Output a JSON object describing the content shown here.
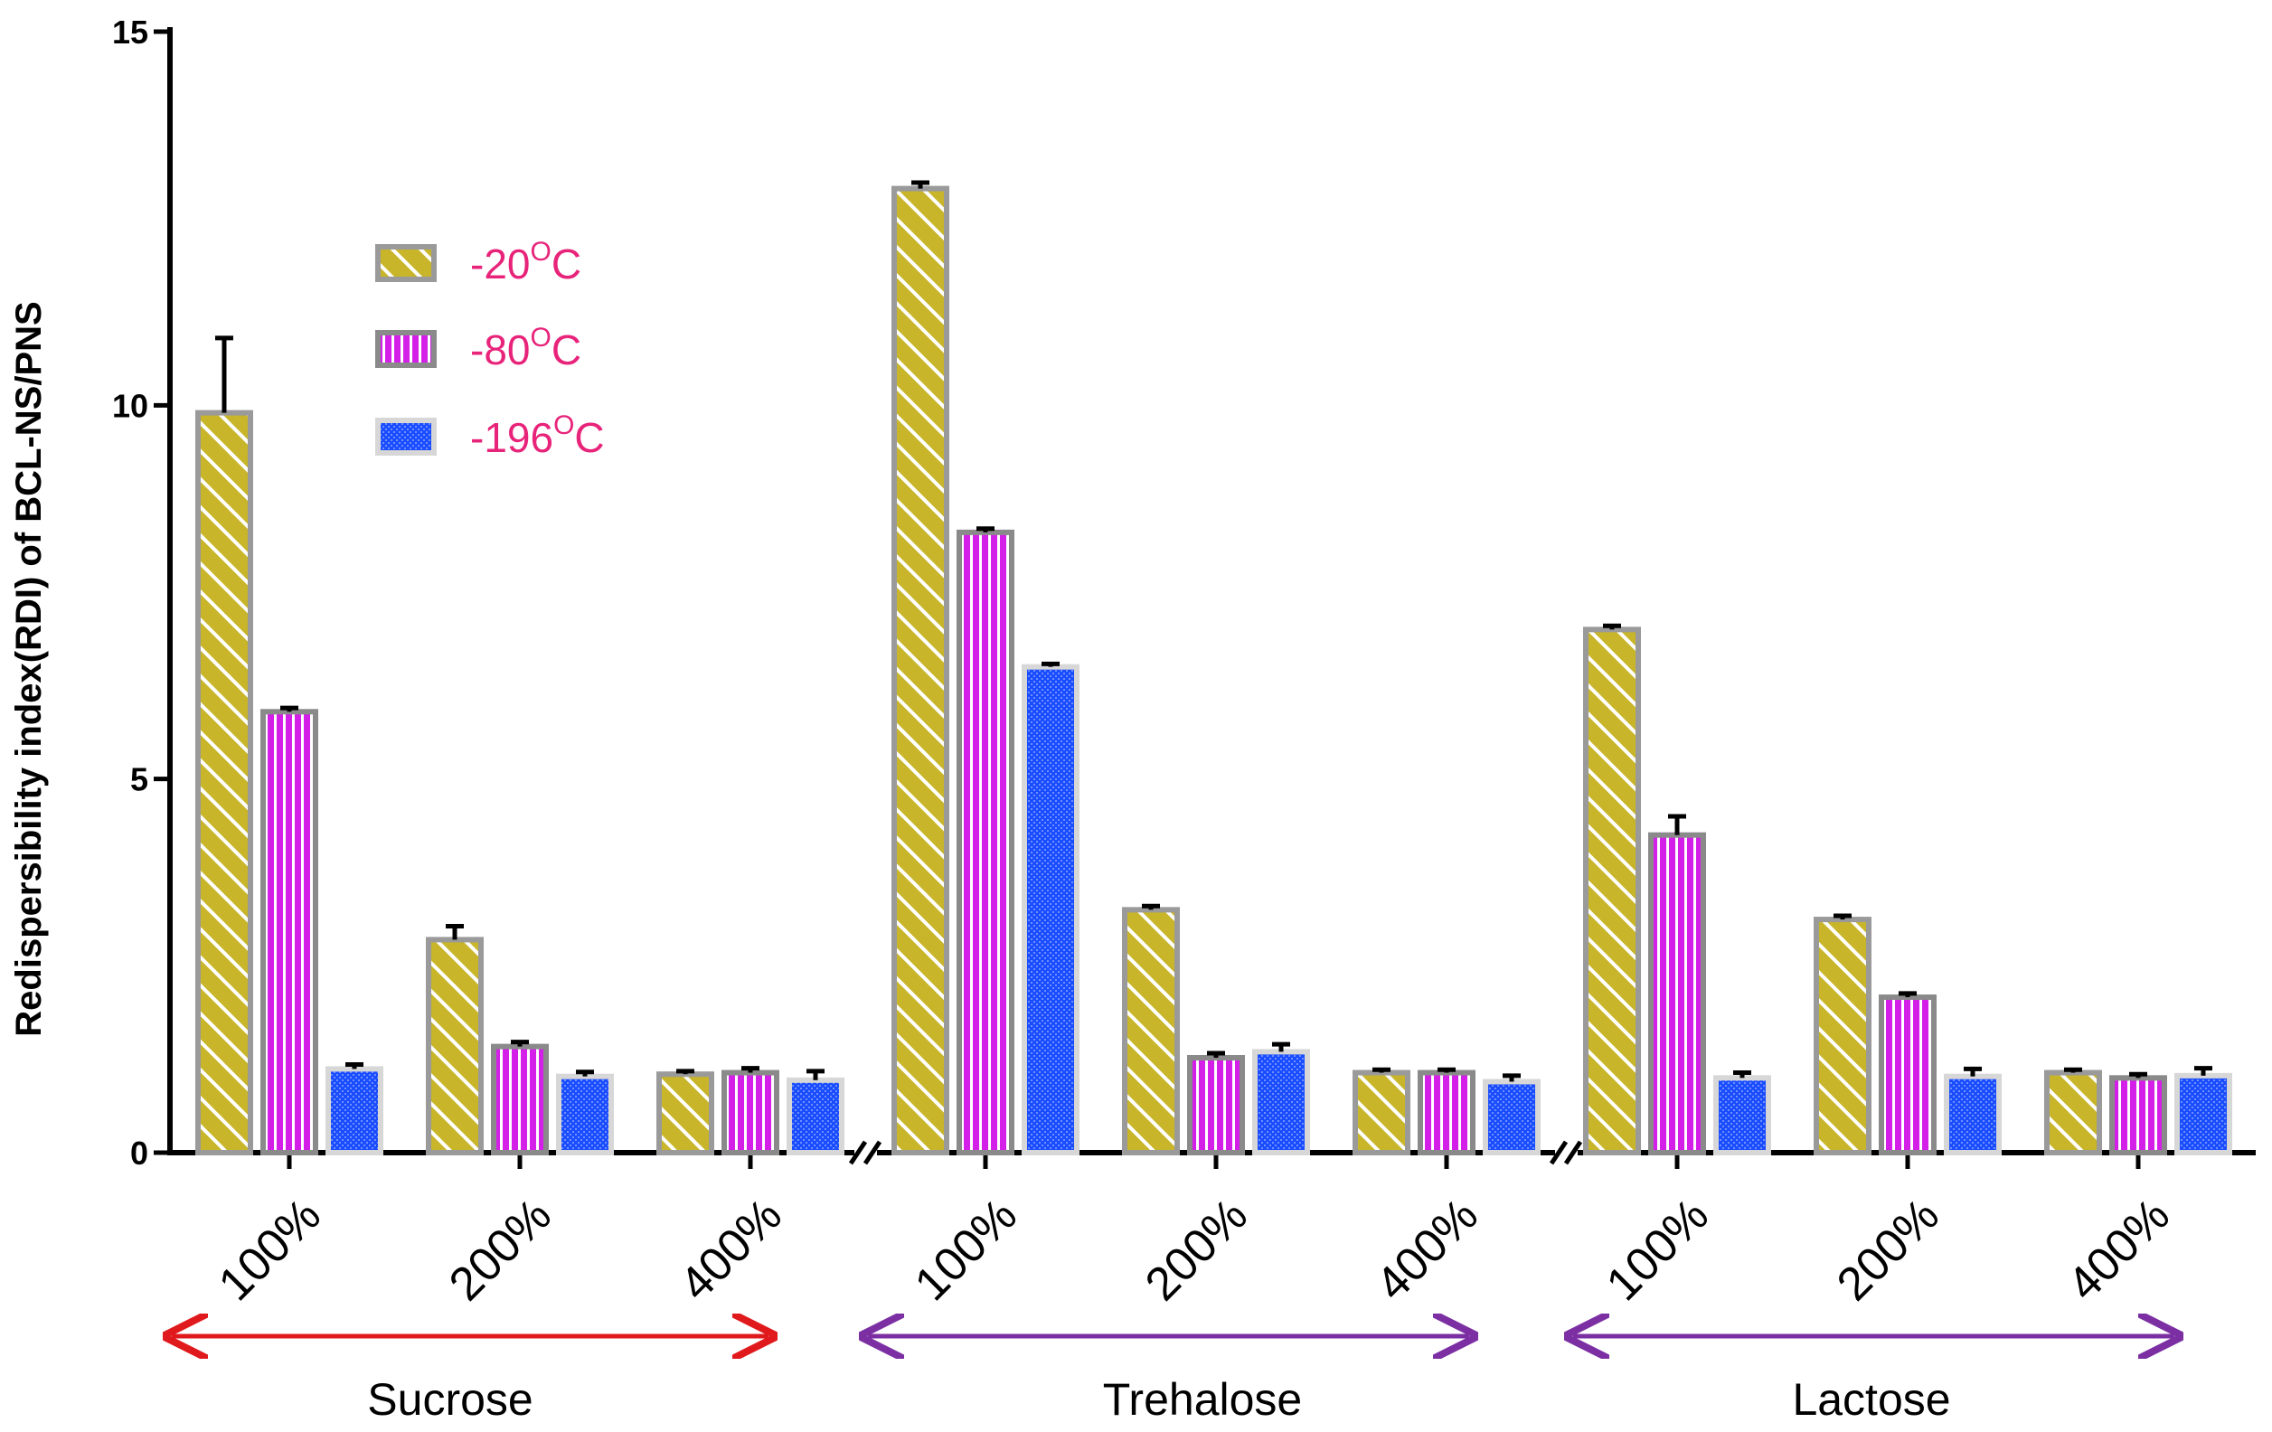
{
  "chart_data": {
    "type": "bar",
    "title": "",
    "ylabel": "Redispersibility index(RDI) of BCL-NS/PNS",
    "xlabel": "",
    "ylim": [
      0,
      15
    ],
    "yticks": [
      "0",
      "5",
      "10",
      "15"
    ],
    "groups": [
      {
        "name": "Sucrose",
        "arrow_color": "#e0191c",
        "categories": [
          "100%",
          "200%",
          "400%"
        ],
        "series": [
          {
            "name": "-20",
            "values": [
              9.9,
              2.85,
              1.05
            ],
            "errors": [
              1.0,
              0.18,
              0.04
            ]
          },
          {
            "name": "-80",
            "values": [
              5.9,
              1.42,
              1.07
            ],
            "errors": [
              0.05,
              0.06,
              0.06
            ]
          },
          {
            "name": "-196",
            "values": [
              1.12,
              1.02,
              0.97
            ],
            "errors": [
              0.06,
              0.06,
              0.12
            ]
          }
        ]
      },
      {
        "name": "Trehalose",
        "arrow_color": "#7b2fa3",
        "categories": [
          "100%",
          "200%",
          "400%"
        ],
        "series": [
          {
            "name": "-20",
            "values": [
              12.9,
              3.25,
              1.07
            ],
            "errors": [
              0.08,
              0.05,
              0.04
            ]
          },
          {
            "name": "-80",
            "values": [
              8.3,
              1.27,
              1.07
            ],
            "errors": [
              0.05,
              0.06,
              0.04
            ]
          },
          {
            "name": "-196",
            "values": [
              6.5,
              1.35,
              0.95
            ],
            "errors": [
              0.04,
              0.1,
              0.08
            ]
          }
        ]
      },
      {
        "name": "Lactose",
        "arrow_color": "#7b2fa3",
        "categories": [
          "100%",
          "200%",
          "400%"
        ],
        "series": [
          {
            "name": "-20",
            "values": [
              7.0,
              3.12,
              1.07
            ],
            "errors": [
              0.05,
              0.05,
              0.04
            ]
          },
          {
            "name": "-80",
            "values": [
              4.25,
              2.08,
              1.0
            ],
            "errors": [
              0.25,
              0.05,
              0.05
            ]
          },
          {
            "name": "-196",
            "values": [
              1.0,
              1.02,
              1.03
            ],
            "errors": [
              0.07,
              0.1,
              0.1
            ]
          }
        ]
      }
    ],
    "legend": [
      {
        "label": "-20",
        "unit": "C",
        "sup": "O",
        "color": "#c8b52a",
        "pattern": "diag"
      },
      {
        "label": "-80",
        "unit": "C",
        "sup": "O",
        "color": "#d41fe8",
        "pattern": "vert"
      },
      {
        "label": "-196",
        "unit": "C",
        "sup": "O",
        "color": "#1a4dff",
        "pattern": "dots"
      }
    ],
    "legend_position": "top-left"
  }
}
